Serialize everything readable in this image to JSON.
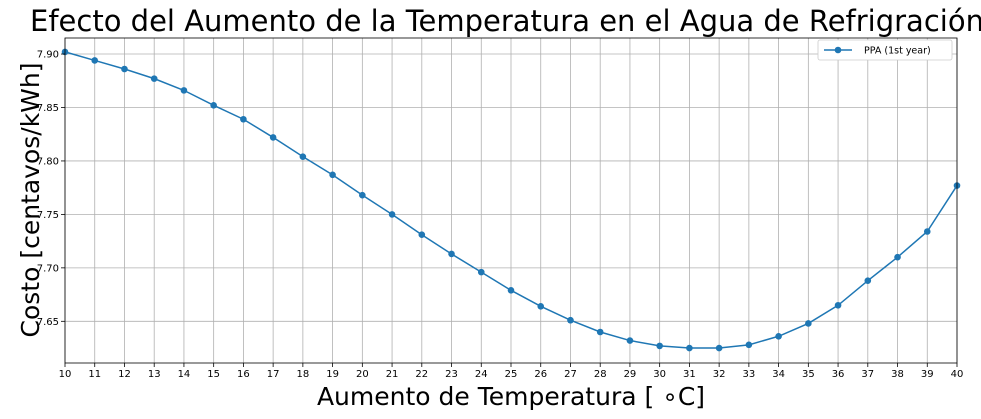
{
  "chart_data": {
    "type": "line",
    "title": "Efecto del Aumento de la Temperatura en el Agua de Refrigración",
    "xlabel": "Aumento de Temperatura [$^\\circ$C]",
    "xlabel_display": "Aumento de Temperatura [ ∘C]",
    "ylabel": "Costo [centavos/kWh]",
    "xlim": [
      10,
      40
    ],
    "ylim": [
      7.611,
      7.915
    ],
    "x_ticks": [
      10,
      11,
      12,
      13,
      14,
      15,
      16,
      17,
      18,
      19,
      20,
      21,
      22,
      23,
      24,
      25,
      26,
      27,
      28,
      29,
      30,
      31,
      32,
      33,
      34,
      35,
      36,
      37,
      38,
      39,
      40
    ],
    "y_ticks": [
      7.65,
      7.7,
      7.75,
      7.8,
      7.85,
      7.9
    ],
    "y_tick_labels": [
      "7.65",
      "7.70",
      "7.75",
      "7.80",
      "7.85",
      "7.90"
    ],
    "grid": true,
    "legend_position": "top-right",
    "series": [
      {
        "name": "PPA (1st year)",
        "color": "#1f77b4",
        "marker": "circle",
        "x": [
          10,
          11,
          12,
          13,
          14,
          15,
          16,
          17,
          18,
          19,
          20,
          21,
          22,
          23,
          24,
          25,
          26,
          27,
          28,
          29,
          30,
          31,
          32,
          33,
          34,
          35,
          36,
          37,
          38,
          39,
          40
        ],
        "y": [
          7.902,
          7.894,
          7.886,
          7.877,
          7.866,
          7.852,
          7.839,
          7.822,
          7.804,
          7.787,
          7.768,
          7.75,
          7.731,
          7.713,
          7.696,
          7.679,
          7.664,
          7.651,
          7.64,
          7.632,
          7.627,
          7.625,
          7.625,
          7.628,
          7.636,
          7.648,
          7.665,
          7.688,
          7.71,
          7.734,
          7.777
        ]
      }
    ]
  }
}
